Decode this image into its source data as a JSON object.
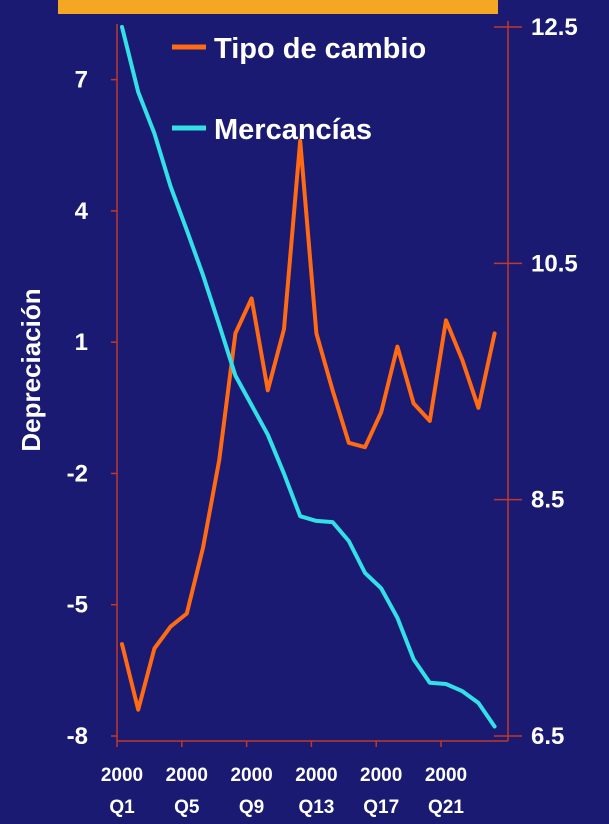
{
  "colors": {
    "background": "#1a1a73",
    "banner": "#f5a623",
    "axis": "#c0392b",
    "text": "#ffffff"
  },
  "chart_data": {
    "type": "line",
    "title": "",
    "ylabel": "Depreciación",
    "y2label": "",
    "x_count": 24,
    "ylim": [
      -8,
      8.5
    ],
    "y2lim": [
      6.5,
      12.5
    ],
    "y_ticks": [
      7,
      4,
      1,
      -2,
      -5,
      -8
    ],
    "y_tick_labels": [
      "7",
      "4",
      "1",
      "-2",
      "-5",
      "-8"
    ],
    "y2_ticks": [
      12.5,
      10.5,
      8.5,
      6.5
    ],
    "y2_tick_labels": [
      "12.5",
      "10.5",
      "8.5",
      "6.5"
    ],
    "x_tick_labels": [
      {
        "index": 1,
        "line1": "2000",
        "line2": "Q1"
      },
      {
        "index": 5,
        "line1": "2000",
        "line2": "Q5"
      },
      {
        "index": 9,
        "line1": "2000",
        "line2": "Q9"
      },
      {
        "index": 13,
        "line1": "2000",
        "line2": "Q13"
      },
      {
        "index": 17,
        "line1": "2000",
        "line2": "Q17"
      },
      {
        "index": 21,
        "line1": "2000",
        "line2": "Q21"
      }
    ],
    "legend_position": "top-right",
    "series": [
      {
        "name": "Tipo de cambio",
        "axis": "left",
        "color": "#ff6a13",
        "values": [
          -5.9,
          -7.4,
          -6.0,
          -5.5,
          -5.2,
          -3.7,
          -1.7,
          1.2,
          2.0,
          -0.1,
          1.3,
          5.6,
          1.2,
          -0.1,
          -1.3,
          -1.4,
          -0.6,
          0.9,
          -0.4,
          -0.8,
          1.5,
          0.6,
          -0.5,
          1.2
        ]
      },
      {
        "name": "Mercancías",
        "axis": "right",
        "color": "#33e0e8",
        "values": [
          12.5,
          11.95,
          11.6,
          11.15,
          10.78,
          10.4,
          9.98,
          9.55,
          9.3,
          9.05,
          8.72,
          8.36,
          8.32,
          8.31,
          8.15,
          7.88,
          7.75,
          7.5,
          7.15,
          6.95,
          6.94,
          6.88,
          6.78,
          6.58
        ]
      }
    ]
  }
}
